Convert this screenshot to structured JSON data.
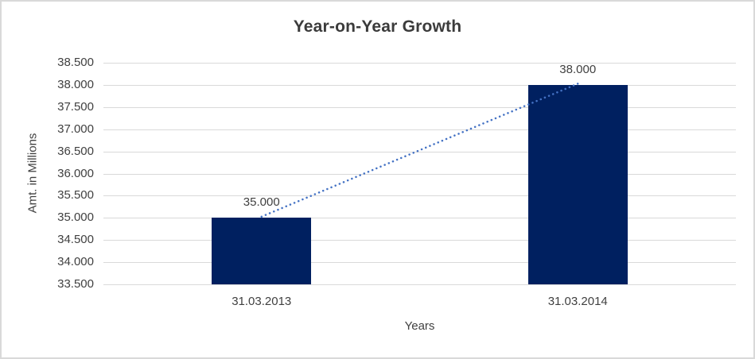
{
  "chart_data": {
    "type": "bar",
    "title": "Year-on-Year Growth",
    "categories": [
      "31.03.2013",
      "31.03.2014"
    ],
    "values": [
      35000,
      38000
    ],
    "value_labels": [
      "35.000",
      "38.000"
    ],
    "xlabel": "Years",
    "ylabel": "Amt. in Millions",
    "ylim": [
      33500,
      38500
    ],
    "ytick_step": 500,
    "ytick_labels": [
      "33.500",
      "34.000",
      "34.500",
      "35.000",
      "35.500",
      "36.000",
      "36.500",
      "37.000",
      "37.500",
      "38.000",
      "38.500"
    ],
    "grid": true,
    "legend": false,
    "bar_color": "#002060",
    "trendline": {
      "style": "dotted",
      "color": "#4472C4",
      "points": [
        [
          0,
          35000
        ],
        [
          1,
          38000
        ]
      ]
    },
    "colors": {
      "gridline": "#d9d9d9",
      "frame_border": "#d9d9d9",
      "text": "#404040",
      "title_text": "#3b3b3b"
    }
  }
}
